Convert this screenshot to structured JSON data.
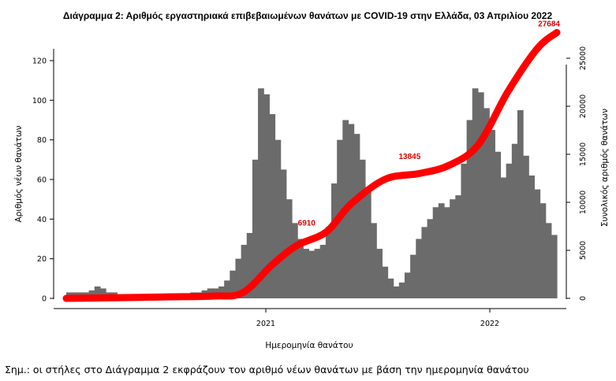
{
  "chart_data": {
    "type": "bar",
    "title": "Διάγραμμα 2: Αριθμός εργαστηριακά επιβεβαιωμένων θανάτων με COVID-19 στην Ελλάδα, 03 Απριλίου 2022",
    "xlabel": "Ημερομηνία θανάτου",
    "ylabel_left": "Αριθμός νέων θανάτων",
    "ylabel_right": "Συνολικός αριθμός θανάτων",
    "x_ticks": [
      "2021",
      "2022"
    ],
    "ylim_left": [
      0,
      130
    ],
    "yticks_left": [
      0,
      20,
      40,
      60,
      80,
      100,
      120
    ],
    "ylim_right": [
      0,
      28000
    ],
    "yticks_right": [
      0,
      5000,
      10000,
      15000,
      20000,
      25000
    ],
    "series": [
      {
        "kind": "bar",
        "axis": "left",
        "color": "#6b6b6b",
        "weekly_daily_values": [
          3,
          3,
          3,
          3,
          4,
          6,
          5,
          3,
          3,
          2,
          2,
          2,
          2,
          2,
          2,
          2,
          2,
          2,
          2,
          2,
          2,
          2,
          3,
          3,
          4,
          5,
          5,
          6,
          9,
          14,
          20,
          27,
          33,
          70,
          106,
          103,
          93,
          80,
          65,
          50,
          38,
          30,
          25,
          24,
          25,
          27,
          36,
          58,
          80,
          90,
          88,
          83,
          70,
          55,
          38,
          25,
          16,
          10,
          6,
          8,
          13,
          22,
          30,
          36,
          40,
          46,
          48,
          46,
          50,
          52,
          68,
          90,
          106,
          104,
          96,
          85,
          74,
          61,
          68,
          78,
          95,
          72,
          62,
          55,
          48,
          38,
          32
        ]
      },
      {
        "kind": "line",
        "axis": "right",
        "color": "#ff0000",
        "points": [
          {
            "x": 0,
            "y": 0
          },
          {
            "x": 0.1,
            "y": 60
          },
          {
            "x": 0.2,
            "y": 150
          },
          {
            "x": 0.3,
            "y": 240
          },
          {
            "x": 0.36,
            "y": 600
          },
          {
            "x": 0.42,
            "y": 3500
          },
          {
            "x": 0.47,
            "y": 5500
          },
          {
            "x": 0.53,
            "y": 6910
          },
          {
            "x": 0.58,
            "y": 9800
          },
          {
            "x": 0.65,
            "y": 12400
          },
          {
            "x": 0.72,
            "y": 13000
          },
          {
            "x": 0.78,
            "y": 13845
          },
          {
            "x": 0.84,
            "y": 16000
          },
          {
            "x": 0.9,
            "y": 21500
          },
          {
            "x": 0.96,
            "y": 26000
          },
          {
            "x": 1,
            "y": 27684
          }
        ]
      }
    ],
    "annotations": [
      {
        "text": "6910",
        "at_x": 0.49,
        "y": 6910
      },
      {
        "text": "13845",
        "at_x": 0.7,
        "y": 13845
      },
      {
        "text": "27684",
        "at_x": 1.0,
        "y": 27684
      }
    ],
    "grid": false,
    "legend": "none"
  },
  "note": "Σημ.: οι στήλες στο Διάγραμμα 2 εκφράζουν τον αριθμό νέων θανάτων με βάση την ημερομηνία θανάτου"
}
